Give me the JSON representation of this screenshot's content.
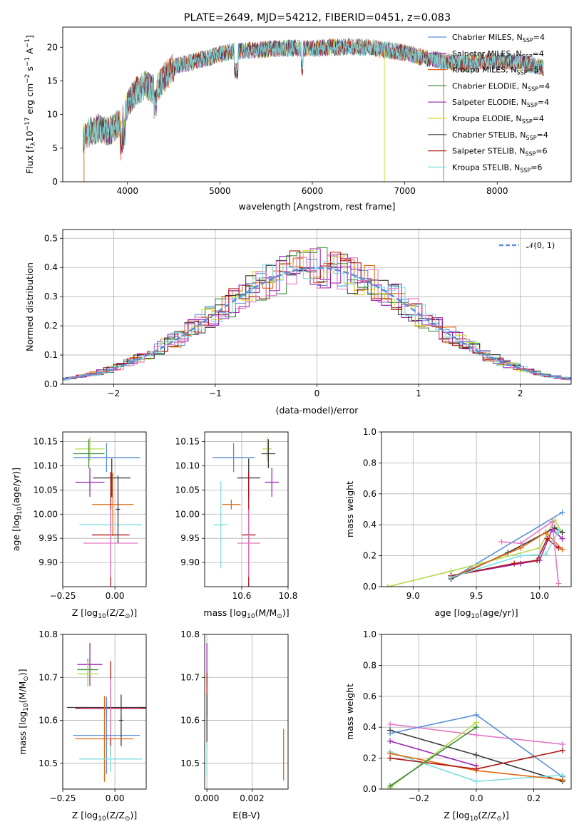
{
  "figure": {
    "title": "PLATE=2649, MJD=54212, FIBERID=0451, z=0.083"
  },
  "colors": {
    "chabrier_miles": "#5b8fd9",
    "salpeter_miles": "#9b27b4",
    "kroupa_miles": "#e16a12",
    "chabrier_elodie": "#3d8a3d",
    "salpeter_elodie": "#8e1fa6",
    "kroupa_elodie": "#d7dc37",
    "chabrier_stelib": "#3a3a3a",
    "salpeter_stelib": "#b01414",
    "kroupa_stelib": "#7fdede",
    "extra_pink": "#e377c2",
    "extra_lime": "#b5d94a",
    "gaussian": "#5b8fd9",
    "grid": "#b0b0b0"
  },
  "chart_data": [
    {
      "id": "spectrum",
      "type": "line",
      "xlabel": "wavelength [Angstrom, rest frame]",
      "ylabel": "Flux [f$_\\lambda$10$^{-17}$ erg cm$^{-2}$ s$^{-1}$ A$^{-1}$]",
      "ylabel_parts": [
        "Flux [f",
        "λ",
        "10",
        "−17",
        " erg cm",
        "−2",
        " s",
        "−1",
        " A",
        "−1",
        "]"
      ],
      "xlim": [
        3300,
        8800
      ],
      "ylim": [
        0,
        23
      ],
      "xticks": [
        4000,
        5000,
        6000,
        7000,
        8000
      ],
      "yticks": [
        0,
        5,
        10,
        15,
        20
      ],
      "grid": false,
      "legend_position": "upper right",
      "legend": [
        {
          "text": "Chabrier MILES, N",
          "sub": "SSP",
          "tail": "=4",
          "color": "#5b8fd9"
        },
        {
          "text": "Salpeter MILES, N",
          "sub": "SSP",
          "tail": "=4",
          "color": "#9b27b4"
        },
        {
          "text": "Kroupa MILES, N",
          "sub": "SSP",
          "tail": "=5",
          "color": "#e16a12"
        },
        {
          "text": "Chabrier ELODIE, N",
          "sub": "SSP",
          "tail": "=4",
          "color": "#3d8a3d"
        },
        {
          "text": "Salpeter ELODIE, N",
          "sub": "SSP",
          "tail": "=4",
          "color": "#8e1fa6"
        },
        {
          "text": "Kroupa ELODIE, N",
          "sub": "SSP",
          "tail": "=4",
          "color": "#d7dc37"
        },
        {
          "text": "Chabrier STELIB, N",
          "sub": "SSP",
          "tail": "=4",
          "color": "#3a3a3a"
        },
        {
          "text": "Salpeter STELIB, N",
          "sub": "SSP",
          "tail": "=6",
          "color": "#b01414"
        },
        {
          "text": "Kroupa STELIB, N",
          "sub": "SSP",
          "tail": "=6",
          "color": "#7fdede"
        }
      ],
      "continuum_wavelength": [
        3520,
        3600,
        3700,
        3800,
        3900,
        3950,
        4000,
        4100,
        4200,
        4300,
        4400,
        4500,
        4600,
        4700,
        4800,
        4900,
        5000,
        5100,
        5200,
        5300,
        5400,
        5500,
        5600,
        5800,
        6000,
        6200,
        6400,
        6600,
        6800,
        7000,
        7200,
        7400,
        7600,
        7800,
        8000,
        8200,
        8500
      ],
      "continuum_flux": [
        6.5,
        7.5,
        8.0,
        7.5,
        8.5,
        9.5,
        11.5,
        13.5,
        14.5,
        13.5,
        15.5,
        17.0,
        17.5,
        17.8,
        18.2,
        18.5,
        19.0,
        19.3,
        19.4,
        19.5,
        19.6,
        19.7,
        19.8,
        19.9,
        19.8,
        20.0,
        20.1,
        20.0,
        19.6,
        19.2,
        18.5,
        18.0,
        17.6,
        17.8,
        18.0,
        17.8,
        17.0
      ],
      "spikes": [
        {
          "x": 3530,
          "y": 0
        },
        {
          "x": 3930,
          "y": 3.2
        },
        {
          "x": 6780,
          "y": 0
        },
        {
          "x": 7420,
          "y": 0
        }
      ]
    },
    {
      "id": "residuals",
      "type": "line",
      "xlabel": "(data-model)/error",
      "ylabel": "Normed distribution",
      "xlim": [
        -2.5,
        2.5
      ],
      "ylim": [
        0,
        0.53
      ],
      "xticks": [
        -2,
        -1,
        0,
        1,
        2
      ],
      "xticklabels": [
        "−2",
        "−1",
        "0",
        "1",
        "2"
      ],
      "yticks": [
        0.0,
        0.1,
        0.2,
        0.3,
        0.4,
        0.5
      ],
      "yticklabels": [
        "0.0",
        "0.1",
        "0.2",
        "0.3",
        "0.4",
        "0.5"
      ],
      "grid": true,
      "legend_position": "upper right",
      "gaussian_label": "𝒩(0, 1)",
      "bin_width": 0.1
    },
    {
      "id": "age_vs_z",
      "type": "scatter",
      "xlabel": "Z [log",
      "xlabel_parts": [
        "Z [log",
        "10",
        "(Z/Z",
        "⊙",
        ")]"
      ],
      "ylabel_parts": [
        "age  [log",
        "10",
        "(age/yr)]"
      ],
      "xlim": [
        -0.25,
        0.15
      ],
      "ylim": [
        9.85,
        10.17
      ],
      "xticks": [
        -0.25,
        0.0
      ],
      "xticklabels": [
        "−0.25",
        "0.00"
      ],
      "yticks": [
        9.9,
        9.95,
        10.0,
        10.05,
        10.1,
        10.15
      ],
      "yticklabels": [
        "9.90",
        "9.95",
        "10.00",
        "10.05",
        "10.10",
        "10.15"
      ],
      "grid": true,
      "points": [
        {
          "x": -0.12,
          "xerr": 0.07,
          "y": 10.135,
          "yerr": 0.025,
          "color": "#b5d94a"
        },
        {
          "x": -0.125,
          "xerr": 0.075,
          "y": 10.125,
          "yerr": 0.03,
          "color": "#3d8a3d"
        },
        {
          "x": -0.04,
          "xerr": 0.16,
          "y": 10.117,
          "yerr": 0.03,
          "color": "#5b8fd9"
        },
        {
          "x": -0.015,
          "xerr": 0.09,
          "y": 10.075,
          "yerr": 0.04,
          "color": "#3a3a3a"
        },
        {
          "x": -0.12,
          "xerr": 0.07,
          "y": 10.066,
          "yerr": 0.03,
          "color": "#9b27b4"
        },
        {
          "x": -0.01,
          "xerr": 0.1,
          "y": 10.02,
          "yerr": 0.065,
          "color": "#e16a12"
        },
        {
          "x": -0.02,
          "xerr": 0.15,
          "y": 9.978,
          "yerr": 0.02,
          "color": "#7fdede"
        },
        {
          "x": -0.02,
          "xerr": 0.09,
          "y": 9.957,
          "yerr": 0.13,
          "color": "#b01414"
        },
        {
          "x": -0.02,
          "xerr": 0.13,
          "y": 9.94,
          "yerr": 0.07,
          "color": "#e377c2"
        },
        {
          "x": 0.015,
          "xerr": 0.01,
          "y": 10.01,
          "yerr": 0.07,
          "color": "#3a3a3a"
        }
      ]
    },
    {
      "id": "age_vs_mass",
      "type": "scatter",
      "xlabel_parts": [
        "mass [log",
        "10",
        "(M/M",
        "⊙",
        ")]"
      ],
      "xlim": [
        10.44,
        10.8
      ],
      "ylim": [
        9.85,
        10.17
      ],
      "xticks": [
        10.6,
        10.8
      ],
      "xticklabels": [
        "10.6",
        "10.8"
      ],
      "yticks": [
        9.9,
        9.95,
        10.0,
        10.05,
        10.1,
        10.15
      ],
      "yticklabels": [
        "9.90",
        "9.95",
        "10.00",
        "10.05",
        "10.10",
        "10.15"
      ],
      "grid": true,
      "points": [
        {
          "x": 10.71,
          "xerr": 0.02,
          "y": 10.135,
          "yerr": 0.025,
          "color": "#b5d94a"
        },
        {
          "x": 10.715,
          "xerr": 0.03,
          "y": 10.125,
          "yerr": 0.03,
          "color": "#3a3a3a"
        },
        {
          "x": 10.565,
          "xerr": 0.09,
          "y": 10.117,
          "yerr": 0.03,
          "color": "#5b8fd9"
        },
        {
          "x": 10.63,
          "xerr": 0.05,
          "y": 10.075,
          "yerr": 0.04,
          "color": "#3a3a3a"
        },
        {
          "x": 10.73,
          "xerr": 0.03,
          "y": 10.066,
          "yerr": 0.03,
          "color": "#9b27b4"
        },
        {
          "x": 10.555,
          "xerr": 0.04,
          "y": 10.02,
          "yerr": 0.01,
          "color": "#e16a12"
        },
        {
          "x": 10.51,
          "xerr": 0.03,
          "y": 9.978,
          "yerr": 0.09,
          "color": "#7fdede"
        },
        {
          "x": 10.63,
          "xerr": 0.03,
          "y": 9.957,
          "yerr": 0.13,
          "color": "#b01414"
        },
        {
          "x": 10.63,
          "xerr": 0.05,
          "y": 9.94,
          "yerr": 0.07,
          "color": "#e377c2"
        }
      ]
    },
    {
      "id": "mass_weight_vs_age",
      "type": "line",
      "xlabel_parts": [
        "age  [log",
        "10",
        "(age/yr)]"
      ],
      "ylabel": "mass weight",
      "xlim": [
        8.75,
        10.25
      ],
      "ylim": [
        0.0,
        1.0
      ],
      "xticks": [
        9.0,
        9.5,
        10.0
      ],
      "xticklabels": [
        "9.0",
        "9.5",
        "10.0"
      ],
      "yticks": [
        0.0,
        0.2,
        0.4,
        0.6,
        0.8,
        1.0
      ],
      "yticklabels": [
        "0.0",
        "0.2",
        "0.4",
        "0.6",
        "0.8",
        "1.0"
      ],
      "grid": true,
      "series": [
        {
          "color": "#5b8fd9",
          "x": [
            9.3,
            10.18
          ],
          "y": [
            0.05,
            0.48
          ]
        },
        {
          "color": "#b5d94a",
          "x": [
            8.8,
            9.3,
            10.0,
            10.12,
            10.18
          ],
          "y": [
            0.0,
            0.1,
            0.25,
            0.43,
            0.35
          ]
        },
        {
          "color": "#3a3a3a",
          "x": [
            9.3,
            9.75,
            10.12,
            10.18
          ],
          "y": [
            0.05,
            0.22,
            0.38,
            0.35
          ]
        },
        {
          "color": "#e16a12",
          "x": [
            9.3,
            9.85,
            10.05,
            10.18
          ],
          "y": [
            0.06,
            0.25,
            0.35,
            0.24
          ]
        },
        {
          "color": "#9b27b4",
          "x": [
            9.3,
            9.85,
            10.0,
            10.1,
            10.18
          ],
          "y": [
            0.07,
            0.15,
            0.17,
            0.37,
            0.31
          ]
        },
        {
          "color": "#b01414",
          "x": [
            9.3,
            9.8,
            9.98,
            10.06,
            10.15
          ],
          "y": [
            0.07,
            0.15,
            0.17,
            0.31,
            0.25
          ]
        },
        {
          "color": "#7fdede",
          "x": [
            9.3,
            9.85,
            10.05,
            10.15
          ],
          "y": [
            0.06,
            0.2,
            0.21,
            0.36
          ]
        },
        {
          "color": "#e377c2",
          "x": [
            9.7,
            9.85,
            10.1,
            10.15
          ],
          "y": [
            0.29,
            0.28,
            0.42,
            0.02
          ]
        }
      ]
    },
    {
      "id": "mass_vs_z",
      "type": "scatter",
      "xlabel_parts": [
        "Z [log",
        "10",
        "(Z/Z",
        "⊙",
        ")]"
      ],
      "ylabel_parts": [
        "mass [log",
        "10",
        "(M/M",
        "⊙",
        ")]"
      ],
      "xlim": [
        -0.25,
        0.15
      ],
      "ylim": [
        10.44,
        10.8
      ],
      "xticks": [
        -0.25,
        0.0
      ],
      "xticklabels": [
        "−0.25",
        "0.00"
      ],
      "yticks": [
        10.5,
        10.6,
        10.7,
        10.8
      ],
      "yticklabels": [
        "10.5",
        "10.6",
        "10.7",
        "10.8"
      ],
      "grid": true,
      "points": [
        {
          "x": -0.12,
          "xerr": 0.06,
          "y": 10.73,
          "yerr": 0.05,
          "color": "#9b27b4"
        },
        {
          "x": -0.13,
          "xerr": 0.05,
          "y": 10.718,
          "yerr": 0.025,
          "color": "#3d8a3d"
        },
        {
          "x": -0.13,
          "xerr": 0.05,
          "y": 10.708,
          "yerr": 0.03,
          "color": "#b5d94a"
        },
        {
          "x": -0.04,
          "xerr": 0.19,
          "y": 10.63,
          "yerr": 0.02,
          "color": "#3a3a3a"
        },
        {
          "x": -0.02,
          "xerr": 0.17,
          "y": 10.628,
          "yerr": 0.11,
          "color": "#b01414"
        },
        {
          "x": -0.02,
          "xerr": 0.14,
          "y": 10.627,
          "yerr": 0.07,
          "color": "#e377c2"
        },
        {
          "x": -0.04,
          "xerr": 0.16,
          "y": 10.565,
          "yerr": 0.09,
          "color": "#5b8fd9"
        },
        {
          "x": 0.03,
          "xerr": 0.01,
          "y": 10.6,
          "yerr": 0.06,
          "color": "#3a3a3a"
        },
        {
          "x": -0.05,
          "xerr": 0.14,
          "y": 10.557,
          "yerr": 0.1,
          "color": "#e16a12"
        },
        {
          "x": -0.02,
          "xerr": 0.15,
          "y": 10.51,
          "yerr": 0.03,
          "color": "#7fdede"
        }
      ]
    },
    {
      "id": "mass_vs_ebv",
      "type": "scatter",
      "xlabel": "E(B-V)",
      "xlim": [
        -0.0001,
        0.0036
      ],
      "ylim": [
        10.44,
        10.8
      ],
      "xticks": [
        0.0,
        0.002
      ],
      "xticklabels": [
        "0.000",
        "0.002"
      ],
      "yticks": [
        10.5,
        10.6,
        10.7,
        10.8
      ],
      "yticklabels": [
        "10.5",
        "10.6",
        "10.7",
        "10.8"
      ],
      "grid": true,
      "points": [
        {
          "x": 0.0,
          "xerr": 0.0,
          "y": 10.73,
          "yerr": 0.05,
          "color": "#9b27b4"
        },
        {
          "x": 0.0,
          "xerr": 0.0,
          "y": 10.66,
          "yerr": 0.05,
          "color": "#b01414"
        },
        {
          "x": 0.0,
          "xerr": 0.0,
          "y": 10.6,
          "yerr": 0.06,
          "color": "#3a3a3a"
        },
        {
          "x": 0.0,
          "xerr": 0.0,
          "y": 10.51,
          "yerr": 0.04,
          "color": "#7fdede"
        },
        {
          "x": 0.0034,
          "xerr": 0.0,
          "y": 10.52,
          "yerr": 0.06,
          "color": "#e16a12"
        }
      ]
    },
    {
      "id": "mass_weight_vs_z",
      "type": "line",
      "xlabel_parts": [
        "Z [log",
        "10",
        "(Z/Z",
        "⊙",
        ")]"
      ],
      "ylabel": "mass weight",
      "xlim": [
        -0.33,
        0.33
      ],
      "ylim": [
        0.0,
        1.0
      ],
      "xticks": [
        -0.2,
        0.0,
        0.2
      ],
      "xticklabels": [
        "−0.2",
        "0.0",
        "0.2"
      ],
      "yticks": [
        0.0,
        0.2,
        0.4,
        0.6,
        0.8,
        1.0
      ],
      "yticklabels": [
        "0.0",
        "0.2",
        "0.4",
        "0.6",
        "0.8",
        "1.0"
      ],
      "grid": true,
      "series": [
        {
          "color": "#e377c2",
          "x": [
            -0.3,
            0.0,
            0.3
          ],
          "y": [
            0.42,
            0.35,
            0.29
          ]
        },
        {
          "color": "#3a3a3a",
          "x": [
            -0.3,
            0.0,
            0.3
          ],
          "y": [
            0.38,
            0.22,
            0.05
          ]
        },
        {
          "color": "#5b8fd9",
          "x": [
            -0.3,
            0.0,
            0.3
          ],
          "y": [
            0.36,
            0.48,
            0.08
          ]
        },
        {
          "color": "#9b27b4",
          "x": [
            -0.3,
            0.0
          ],
          "y": [
            0.31,
            0.15
          ]
        },
        {
          "color": "#7fdede",
          "x": [
            -0.3,
            0.0,
            0.3
          ],
          "y": [
            0.24,
            0.05,
            0.09
          ]
        },
        {
          "color": "#e16a12",
          "x": [
            -0.3,
            0.0,
            0.3
          ],
          "y": [
            0.23,
            0.12,
            0.06
          ]
        },
        {
          "color": "#b01414",
          "x": [
            -0.3,
            0.0,
            0.3
          ],
          "y": [
            0.2,
            0.13,
            0.25
          ]
        },
        {
          "color": "#b5d94a",
          "x": [
            -0.3,
            0.0
          ],
          "y": [
            0.01,
            0.43
          ]
        },
        {
          "color": "#3d8a3d",
          "x": [
            -0.3,
            0.0
          ],
          "y": [
            0.02,
            0.4
          ]
        }
      ]
    }
  ]
}
